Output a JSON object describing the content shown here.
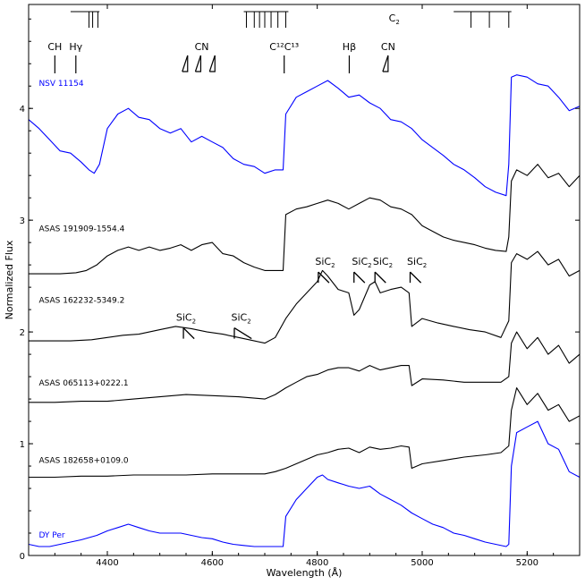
{
  "chart_data": {
    "type": "line",
    "xlabel": "Wavelength (Å)",
    "ylabel": "Normalized Flux",
    "xlim": [
      4250,
      5300
    ],
    "ylim": [
      0,
      4.93
    ],
    "x_ticks": [
      4400,
      4600,
      4800,
      5000,
      5200
    ],
    "y_ticks": [
      0,
      1,
      2,
      3,
      4
    ],
    "x_tick_labels": [
      "4400",
      "4600",
      "4800",
      "5000",
      "5200"
    ],
    "y_tick_labels": [
      "0",
      "1",
      "2",
      "3",
      "4"
    ],
    "grid": false,
    "series": [
      {
        "name": "NSV 11154",
        "color": "#0000ff",
        "x": [
          4250,
          4270,
          4290,
          4310,
          4330,
          4350,
          4365,
          4375,
          4385,
          4400,
          4420,
          4440,
          4460,
          4480,
          4500,
          4520,
          4540,
          4560,
          4580,
          4600,
          4620,
          4640,
          4660,
          4680,
          4700,
          4720,
          4735,
          4740,
          4760,
          4780,
          4800,
          4820,
          4840,
          4860,
          4880,
          4900,
          4920,
          4940,
          4960,
          4980,
          5000,
          5020,
          5040,
          5060,
          5080,
          5100,
          5120,
          5140,
          5160,
          5165,
          5170,
          5180,
          5200,
          5220,
          5240,
          5260,
          5280,
          5300
        ],
        "y": [
          3.9,
          3.82,
          3.72,
          3.62,
          3.6,
          3.52,
          3.45,
          3.42,
          3.5,
          3.82,
          3.95,
          4.0,
          3.92,
          3.9,
          3.82,
          3.78,
          3.82,
          3.7,
          3.75,
          3.7,
          3.65,
          3.55,
          3.5,
          3.48,
          3.42,
          3.45,
          3.45,
          3.95,
          4.1,
          4.15,
          4.2,
          4.25,
          4.18,
          4.1,
          4.12,
          4.05,
          4.0,
          3.9,
          3.88,
          3.82,
          3.72,
          3.65,
          3.58,
          3.5,
          3.45,
          3.38,
          3.3,
          3.25,
          3.22,
          3.5,
          4.28,
          4.3,
          4.28,
          4.22,
          4.2,
          4.1,
          3.98,
          4.02
        ]
      },
      {
        "name": "ASAS 191909-1554.4",
        "color": "#000000",
        "x": [
          4250,
          4280,
          4310,
          4340,
          4360,
          4380,
          4400,
          4420,
          4440,
          4460,
          4480,
          4500,
          4520,
          4540,
          4560,
          4580,
          4600,
          4620,
          4640,
          4660,
          4680,
          4700,
          4720,
          4735,
          4740,
          4760,
          4780,
          4800,
          4820,
          4840,
          4860,
          4880,
          4900,
          4920,
          4940,
          4960,
          4980,
          5000,
          5020,
          5040,
          5060,
          5080,
          5100,
          5120,
          5140,
          5160,
          5165,
          5170,
          5180,
          5200,
          5220,
          5240,
          5260,
          5280,
          5300
        ],
        "y": [
          2.52,
          2.52,
          2.52,
          2.53,
          2.55,
          2.6,
          2.68,
          2.73,
          2.76,
          2.73,
          2.76,
          2.73,
          2.75,
          2.78,
          2.73,
          2.78,
          2.8,
          2.7,
          2.68,
          2.62,
          2.58,
          2.55,
          2.55,
          2.55,
          3.05,
          3.1,
          3.12,
          3.15,
          3.18,
          3.15,
          3.1,
          3.15,
          3.2,
          3.18,
          3.12,
          3.1,
          3.05,
          2.95,
          2.9,
          2.85,
          2.82,
          2.8,
          2.78,
          2.75,
          2.73,
          2.72,
          2.85,
          3.35,
          3.45,
          3.4,
          3.5,
          3.38,
          3.42,
          3.3,
          3.4
        ]
      },
      {
        "name": "ASAS 162232-5349.2",
        "color": "#000000",
        "x": [
          4250,
          4290,
          4330,
          4370,
          4400,
          4430,
          4460,
          4500,
          4530,
          4560,
          4590,
          4620,
          4650,
          4680,
          4700,
          4720,
          4740,
          4760,
          4780,
          4800,
          4810,
          4820,
          4840,
          4860,
          4870,
          4880,
          4900,
          4910,
          4920,
          4940,
          4960,
          4975,
          4980,
          5000,
          5030,
          5060,
          5090,
          5120,
          5150,
          5165,
          5170,
          5180,
          5200,
          5220,
          5240,
          5260,
          5280,
          5300
        ],
        "y": [
          1.92,
          1.92,
          1.92,
          1.93,
          1.95,
          1.97,
          1.98,
          2.02,
          2.05,
          2.03,
          2.0,
          1.98,
          1.95,
          1.92,
          1.9,
          1.95,
          2.12,
          2.25,
          2.35,
          2.45,
          2.55,
          2.5,
          2.38,
          2.35,
          2.15,
          2.2,
          2.42,
          2.45,
          2.35,
          2.38,
          2.4,
          2.35,
          2.05,
          2.12,
          2.08,
          2.05,
          2.02,
          2.0,
          1.95,
          2.1,
          2.62,
          2.7,
          2.65,
          2.72,
          2.6,
          2.65,
          2.5,
          2.55
        ]
      },
      {
        "name": "ASAS 065113+0222.1",
        "color": "#000000",
        "x": [
          4250,
          4300,
          4350,
          4400,
          4450,
          4500,
          4550,
          4600,
          4650,
          4700,
          4720,
          4740,
          4760,
          4780,
          4800,
          4820,
          4840,
          4860,
          4880,
          4900,
          4920,
          4940,
          4960,
          4975,
          4980,
          5000,
          5040,
          5080,
          5120,
          5150,
          5165,
          5170,
          5180,
          5200,
          5220,
          5240,
          5260,
          5280,
          5300
        ],
        "y": [
          1.37,
          1.37,
          1.38,
          1.38,
          1.4,
          1.42,
          1.44,
          1.43,
          1.42,
          1.4,
          1.44,
          1.5,
          1.55,
          1.6,
          1.62,
          1.66,
          1.68,
          1.68,
          1.65,
          1.7,
          1.66,
          1.68,
          1.7,
          1.7,
          1.52,
          1.58,
          1.57,
          1.55,
          1.55,
          1.55,
          1.6,
          1.9,
          2.0,
          1.85,
          1.95,
          1.8,
          1.88,
          1.72,
          1.8
        ]
      },
      {
        "name": "ASAS 182658+0109.0",
        "color": "#000000",
        "x": [
          4250,
          4300,
          4350,
          4400,
          4450,
          4500,
          4550,
          4600,
          4650,
          4700,
          4720,
          4740,
          4760,
          4780,
          4800,
          4820,
          4840,
          4860,
          4880,
          4900,
          4920,
          4940,
          4960,
          4975,
          4980,
          5000,
          5040,
          5080,
          5120,
          5150,
          5165,
          5170,
          5180,
          5200,
          5220,
          5240,
          5260,
          5280,
          5300
        ],
        "y": [
          0.7,
          0.7,
          0.71,
          0.71,
          0.72,
          0.72,
          0.72,
          0.73,
          0.73,
          0.73,
          0.75,
          0.78,
          0.82,
          0.86,
          0.9,
          0.92,
          0.95,
          0.96,
          0.92,
          0.97,
          0.95,
          0.96,
          0.98,
          0.97,
          0.78,
          0.82,
          0.85,
          0.88,
          0.9,
          0.92,
          0.98,
          1.3,
          1.5,
          1.35,
          1.45,
          1.3,
          1.35,
          1.2,
          1.25
        ]
      },
      {
        "name": "DY Per",
        "color": "#0000ff",
        "x": [
          4250,
          4270,
          4290,
          4310,
          4330,
          4350,
          4380,
          4400,
          4420,
          4440,
          4460,
          4480,
          4500,
          4520,
          4540,
          4560,
          4580,
          4600,
          4620,
          4640,
          4660,
          4680,
          4700,
          4720,
          4735,
          4740,
          4760,
          4780,
          4800,
          4810,
          4820,
          4840,
          4860,
          4880,
          4900,
          4920,
          4940,
          4960,
          4980,
          5000,
          5020,
          5040,
          5060,
          5080,
          5100,
          5120,
          5140,
          5160,
          5165,
          5170,
          5180,
          5200,
          5220,
          5240,
          5260,
          5280,
          5300
        ],
        "y": [
          0.1,
          0.08,
          0.08,
          0.1,
          0.12,
          0.14,
          0.18,
          0.22,
          0.25,
          0.28,
          0.25,
          0.22,
          0.2,
          0.2,
          0.2,
          0.18,
          0.16,
          0.15,
          0.12,
          0.1,
          0.09,
          0.08,
          0.08,
          0.08,
          0.08,
          0.35,
          0.5,
          0.6,
          0.7,
          0.72,
          0.68,
          0.65,
          0.62,
          0.6,
          0.62,
          0.55,
          0.5,
          0.45,
          0.38,
          0.33,
          0.28,
          0.25,
          0.2,
          0.18,
          0.15,
          0.12,
          0.1,
          0.08,
          0.1,
          0.8,
          1.1,
          1.15,
          1.2,
          1.0,
          0.95,
          0.75,
          0.7
        ]
      }
    ],
    "series_labels": [
      {
        "text": "NSV 11154",
        "x": 4290,
        "y": 4.2,
        "color": "#0000ff"
      },
      {
        "text": "ASAS 191909-1554.4",
        "x": 4290,
        "y": 2.9,
        "color": "#000000"
      },
      {
        "text": "ASAS 162232-5349.2",
        "x": 4290,
        "y": 2.26,
        "color": "#000000"
      },
      {
        "text": "ASAS 065113+0222.1",
        "x": 4290,
        "y": 1.52,
        "color": "#000000"
      },
      {
        "text": "ASAS 182658+0109.0",
        "x": 4290,
        "y": 0.83,
        "color": "#000000"
      },
      {
        "text": "DY Per",
        "x": 4290,
        "y": 0.16,
        "color": "#0000ff"
      }
    ],
    "annotations": {
      "c2_label": "C",
      "c2_sub": "2",
      "c2_position": [
        4950,
        4.81
      ],
      "c2_bandheads": [
        4365,
        4372,
        4382,
        4665,
        4680,
        4690,
        4700,
        4712,
        4725,
        4740,
        5093,
        5128,
        5165
      ],
      "c2_band_groups": [
        [
          4330,
          4385
        ],
        [
          4660,
          4745
        ],
        [
          5060,
          5170
        ]
      ],
      "line_ids": [
        {
          "text": "CH",
          "x": 4300,
          "y": 4.5,
          "marker": "bar"
        },
        {
          "text": "Hγ",
          "x": 4340,
          "y": 4.5,
          "marker": "bar"
        },
        {
          "text": "CN",
          "x": 4580,
          "y": 4.5,
          "marker": "cn",
          "heads": [
            4553,
            4578,
            4605
          ]
        },
        {
          "text": "C¹²C¹³",
          "x": 4737,
          "y": 4.5,
          "marker": "bar"
        },
        {
          "text": "Hβ",
          "x": 4861,
          "y": 4.5,
          "marker": "bar"
        },
        {
          "text": "CN",
          "x": 4935,
          "y": 4.5,
          "marker": "cn",
          "heads": [
            4935
          ]
        }
      ],
      "sic2": [
        {
          "text": "SiC",
          "sub": "2",
          "x": 4550,
          "y": 2.1,
          "head": 4545,
          "len": 22
        },
        {
          "text": "SiC",
          "sub": "2",
          "x": 4655,
          "y": 2.1,
          "head": 4642,
          "len": 35
        },
        {
          "text": "SiC",
          "sub": "2",
          "x": 4815,
          "y": 2.6,
          "head": 4802,
          "len": 22
        },
        {
          "text": "SiC",
          "sub": "2",
          "x": 4885,
          "y": 2.6,
          "head": 4870,
          "len": 22
        },
        {
          "text": "SiC",
          "sub": "2",
          "x": 4925,
          "y": 2.6,
          "head": 4910,
          "len": 22
        },
        {
          "text": "SiC",
          "sub": "2",
          "x": 4990,
          "y": 2.6,
          "head": 4977,
          "len": 22
        }
      ]
    }
  }
}
